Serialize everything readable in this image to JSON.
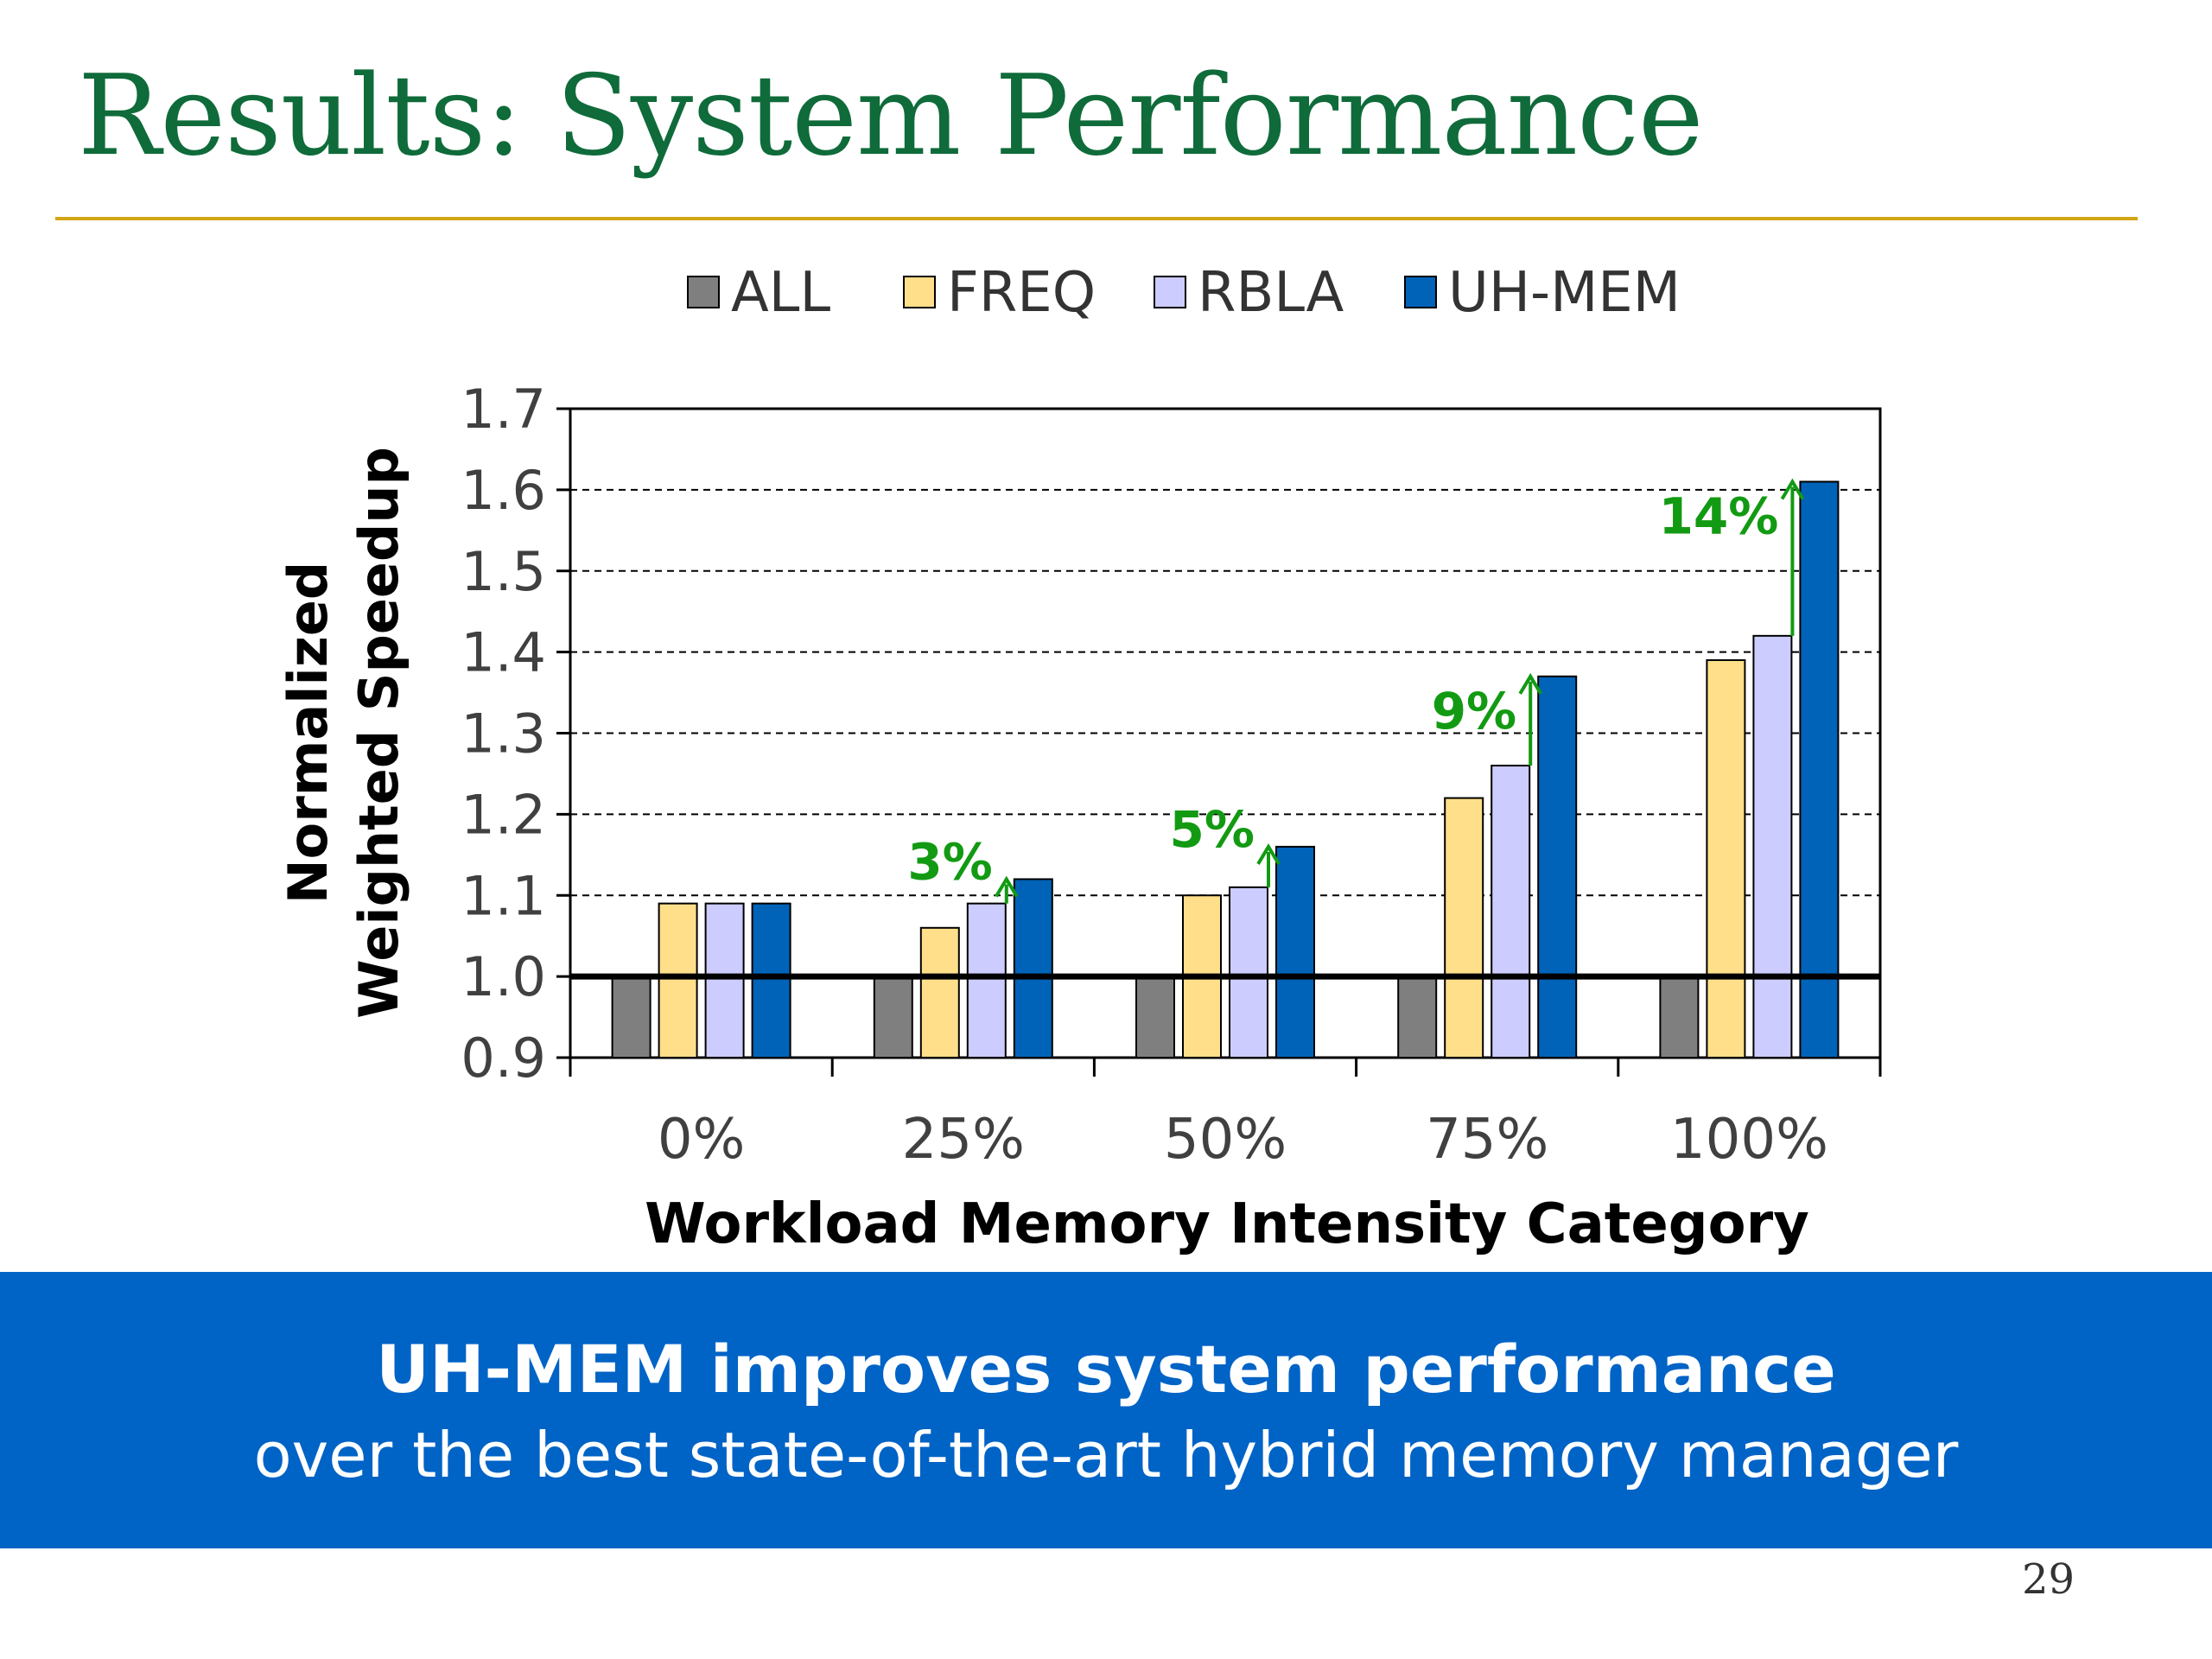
{
  "slide": {
    "title": "Results: System Performance",
    "page_number": "29"
  },
  "banner": {
    "line1": "UH-MEM improves system performance",
    "line2": "over the best state-of-the-art hybrid memory manager",
    "background_color": "#0063c6"
  },
  "colors": {
    "title": "#0f6b3a",
    "rule": "#d4a516",
    "annotation": "#139a13"
  },
  "chart_data": {
    "type": "bar",
    "title": "",
    "xlabel": "Workload Memory Intensity Category",
    "ylabel": "Normalized\nWeighted Speedup",
    "ylim": [
      0.9,
      1.7
    ],
    "yticks": [
      "0.9",
      "1.0",
      "1.1",
      "1.2",
      "1.3",
      "1.4",
      "1.5",
      "1.6",
      "1.7"
    ],
    "grid": "horizontal dashed",
    "legend_position": "top",
    "baseline": 1.0,
    "categories": [
      "0%",
      "25%",
      "50%",
      "75%",
      "100%"
    ],
    "series": [
      {
        "name": "ALL",
        "color": "#7f7f7f",
        "values": [
          1.0,
          1.0,
          1.0,
          1.0,
          1.0
        ]
      },
      {
        "name": "FREQ",
        "color": "#ffdf8a",
        "values": [
          1.09,
          1.06,
          1.1,
          1.22,
          1.39
        ]
      },
      {
        "name": "RBLA",
        "color": "#ccccff",
        "values": [
          1.09,
          1.09,
          1.11,
          1.26,
          1.42
        ]
      },
      {
        "name": "UH-MEM",
        "color": "#0063b8",
        "values": [
          1.09,
          1.12,
          1.16,
          1.37,
          1.61
        ]
      }
    ],
    "annotations": [
      {
        "category": "25%",
        "label": "3%",
        "from": 1.09,
        "to": 1.12
      },
      {
        "category": "50%",
        "label": "5%",
        "from": 1.11,
        "to": 1.16
      },
      {
        "category": "75%",
        "label": "9%",
        "from": 1.26,
        "to": 1.37
      },
      {
        "category": "100%",
        "label": "14%",
        "from": 1.42,
        "to": 1.61
      }
    ]
  }
}
